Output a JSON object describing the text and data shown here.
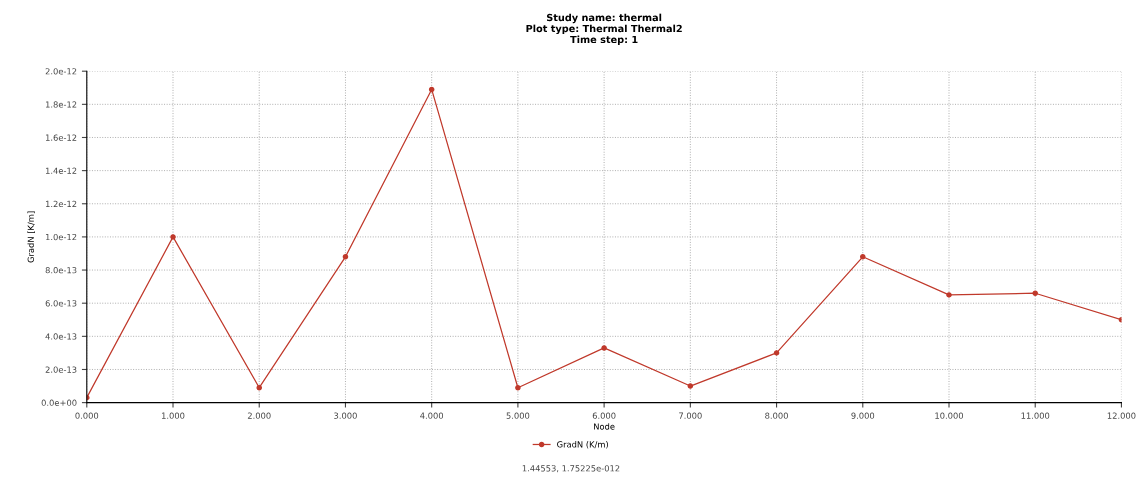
{
  "chart_data": {
    "type": "line",
    "title": "Study name: thermal\nPlot type: Thermal Thermal2\nTime step: 1",
    "xlabel": "Node",
    "ylabel": "GradN [K/m]",
    "x": [
      0,
      1,
      2,
      3,
      4,
      5,
      6,
      7,
      8,
      9,
      10,
      11,
      12
    ],
    "series": [
      {
        "name": "GradN (K/m)",
        "color": "#c0392b",
        "values": [
          3e-14,
          1e-12,
          9e-14,
          8.8e-13,
          1.89e-12,
          9e-14,
          3.3e-13,
          1e-13,
          3e-13,
          8.8e-13,
          6.5e-13,
          6.6e-13,
          5e-13
        ]
      }
    ],
    "xlim": [
      0,
      12
    ],
    "xticks": [
      {
        "value": 0,
        "label": "0.000"
      },
      {
        "value": 1,
        "label": "1.000"
      },
      {
        "value": 2,
        "label": "2.000"
      },
      {
        "value": 3,
        "label": "3.000"
      },
      {
        "value": 4,
        "label": "4.000"
      },
      {
        "value": 5,
        "label": "5.000"
      },
      {
        "value": 6,
        "label": "6.000"
      },
      {
        "value": 7,
        "label": "7.000"
      },
      {
        "value": 8,
        "label": "8.000"
      },
      {
        "value": 9,
        "label": "9.000"
      },
      {
        "value": 10,
        "label": "10.000"
      },
      {
        "value": 11,
        "label": "11.000"
      },
      {
        "value": 12,
        "label": "12.000"
      }
    ],
    "ylim": [
      0,
      2e-12
    ],
    "yticks": [
      {
        "value": 0,
        "label": "0.0e+00"
      },
      {
        "value": 2e-13,
        "label": "2.0e-13"
      },
      {
        "value": 4e-13,
        "label": "4.0e-13"
      },
      {
        "value": 6e-13,
        "label": "6.0e-13"
      },
      {
        "value": 8e-13,
        "label": "8.0e-13"
      },
      {
        "value": 1e-12,
        "label": "1.0e-12"
      },
      {
        "value": 1.2e-12,
        "label": "1.2e-12"
      },
      {
        "value": 1.4e-12,
        "label": "1.4e-12"
      },
      {
        "value": 1.6e-12,
        "label": "1.6e-12"
      },
      {
        "value": 1.8e-12,
        "label": "1.8e-12"
      },
      {
        "value": 2e-12,
        "label": "2.0e-12"
      }
    ],
    "grid": true,
    "legend": "bottom",
    "marker": "circle",
    "line_style": "solid",
    "annotations": [
      "1.44553, 1.75225e-012"
    ]
  }
}
